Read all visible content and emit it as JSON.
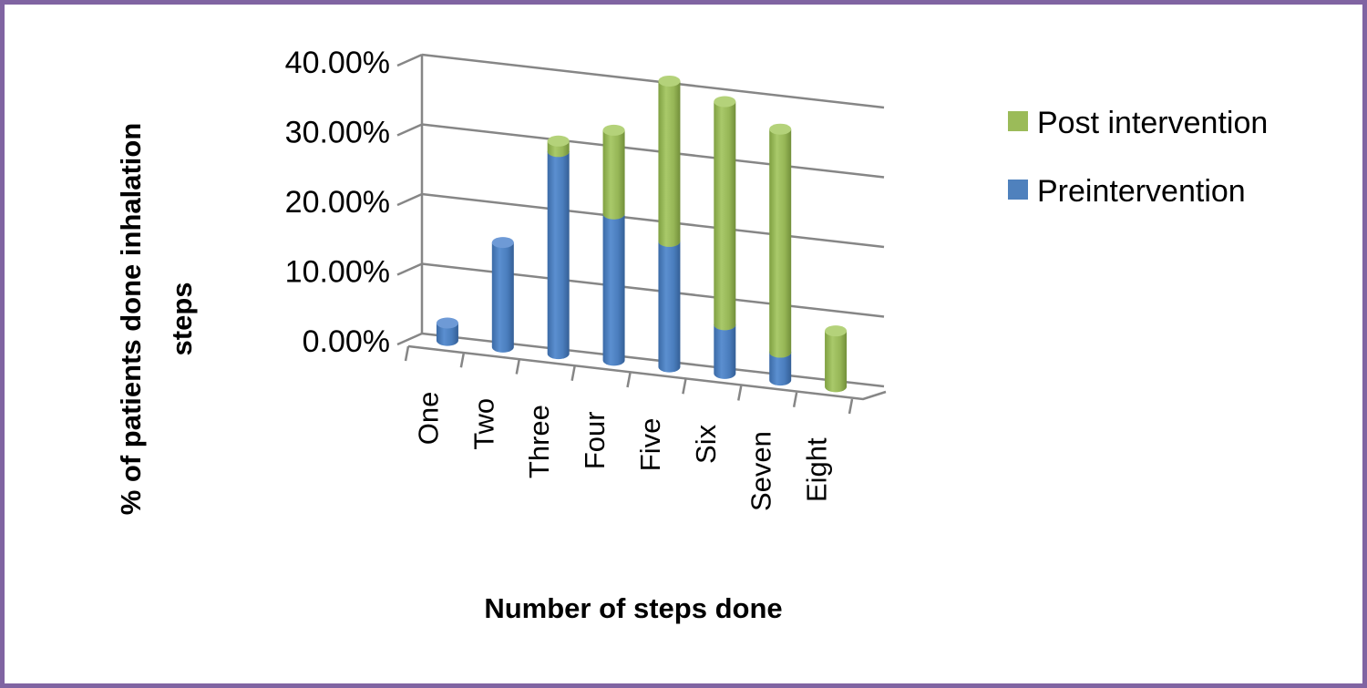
{
  "colors": {
    "frame": "#8064a2",
    "pre": "#4f81bd",
    "post": "#9bbb59",
    "grid": "#868686"
  },
  "chart_data": {
    "type": "bar",
    "stacked": true,
    "three_d": true,
    "categories": [
      "One",
      "Two",
      "Three",
      "Four",
      "Five",
      "Six",
      "Seven",
      "Eight"
    ],
    "series": [
      {
        "name": "Preintervention",
        "values": [
          0.025,
          0.15,
          0.29,
          0.21,
          0.18,
          0.07,
          0.04,
          0.0
        ]
      },
      {
        "name": "Post intervention",
        "values": [
          0.0,
          0.0,
          0.015,
          0.12,
          0.23,
          0.32,
          0.32,
          0.08
        ]
      }
    ],
    "yticks": [
      "0.00%",
      "10.00%",
      "20.00%",
      "30.00%",
      "40.00%"
    ],
    "ylim": [
      0,
      0.4
    ],
    "xlabel": "Number of steps done",
    "ylabel": "% of patients done inhalation steps",
    "grid": true,
    "legend_position": "right"
  }
}
